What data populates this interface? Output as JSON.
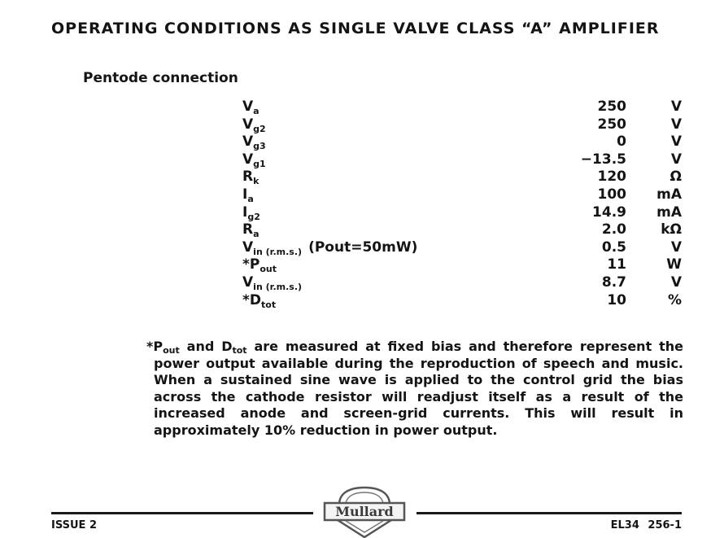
{
  "heading": {
    "title": "OPERATING CONDITIONS AS SINGLE VALVE CLASS “A” AMPLIFIER",
    "subtitle": "Pentode connection"
  },
  "conditions": [
    {
      "sym": "V",
      "sub": "a",
      "cond": "",
      "value": "250",
      "unit": "V"
    },
    {
      "sym": "V",
      "sub": "g2",
      "cond": "",
      "value": "250",
      "unit": "V"
    },
    {
      "sym": "V",
      "sub": "g3",
      "cond": "",
      "value": "0",
      "unit": "V"
    },
    {
      "sym": "V",
      "sub": "g1",
      "cond": "",
      "value": "−13.5",
      "unit": "V"
    },
    {
      "sym": "R",
      "sub": "k",
      "cond": "",
      "value": "120",
      "unit": "Ω"
    },
    {
      "sym": "I",
      "sub": "a",
      "cond": "",
      "value": "100",
      "unit": "mA"
    },
    {
      "sym": "I",
      "sub": "g2",
      "cond": "",
      "value": "14.9",
      "unit": "mA"
    },
    {
      "sym": "R",
      "sub": "a",
      "cond": "",
      "value": "2.0",
      "unit": "kΩ"
    },
    {
      "sym": "V",
      "sub": "in (r.m.s.)",
      "cond": "(Pout=50mW)",
      "value": "0.5",
      "unit": "V"
    },
    {
      "sym": "*P",
      "sub": "out",
      "cond": "",
      "value": "11",
      "unit": "W"
    },
    {
      "sym": "V",
      "sub": "in (r.m.s.)",
      "cond": "",
      "value": "8.7",
      "unit": "V"
    },
    {
      "sym": "*D",
      "sub": "tot",
      "cond": "",
      "value": "10",
      "unit": "%"
    }
  ],
  "note": {
    "p1": "*P",
    "s1": "out",
    "p2": " and D",
    "s2": "tot",
    "p3": " are measured at fixed bias and therefore represent the power output available during the reproduction of speech and music. When a sustained sine wave is applied to the control grid the bias across the cathode resistor will readjust itself as a result of the increased anode and screen-grid currents. This will result in approximately 10% reduction in power output."
  },
  "footer": {
    "issue": "ISSUE 2",
    "logo_text": "Mullard",
    "code": "EL34 256-1"
  }
}
